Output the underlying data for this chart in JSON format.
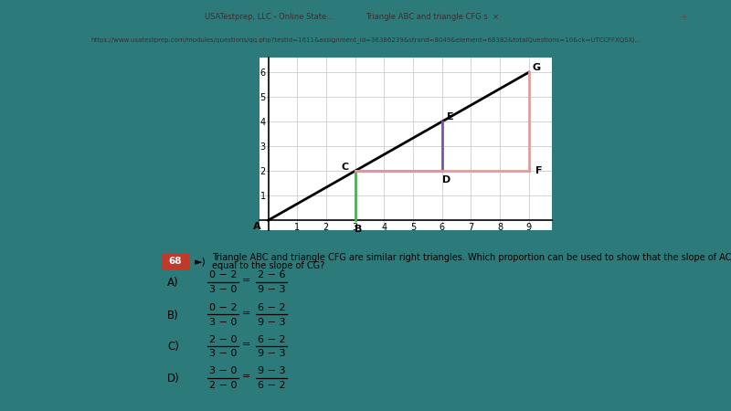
{
  "bg_color": "#2d7a7a",
  "panel_color": "#ffffff",
  "browser_top_color": "#f1f3f4",
  "browser_tab_color": "#ffffff",
  "graph": {
    "points": {
      "A": [
        0,
        0
      ],
      "B": [
        3,
        0
      ],
      "C": [
        3,
        2
      ],
      "D": [
        6,
        2
      ],
      "E": [
        6,
        4
      ],
      "F": [
        9,
        2
      ],
      "G": [
        9,
        6
      ]
    },
    "grid_color": "#cccccc",
    "green_color": "#4caf50",
    "purple_color": "#7b52ab",
    "pink_color": "#d9a0a0"
  },
  "question_number": "68",
  "question_text_line1": "Triangle ABC and triangle CFG are similar right triangles. Which proportion can be used to show that the slope of AC is",
  "question_text_line2": "equal to the slope of CG?",
  "choices": [
    {
      "label": "A)",
      "num1": "0 − 2",
      "den1": "3 − 0",
      "num2": "2 − 6",
      "den2": "9 − 3"
    },
    {
      "label": "B)",
      "num1": "0 − 2",
      "den1": "3 − 0",
      "num2": "6 − 2",
      "den2": "9 − 3"
    },
    {
      "label": "C)",
      "num1": "2 − 0",
      "den1": "3 − 0",
      "num2": "6 − 2",
      "den2": "9 − 3"
    },
    {
      "label": "D)",
      "num1": "3 − 0",
      "den1": "2 − 0",
      "num2": "9 − 3",
      "den2": "6 − 2"
    }
  ]
}
